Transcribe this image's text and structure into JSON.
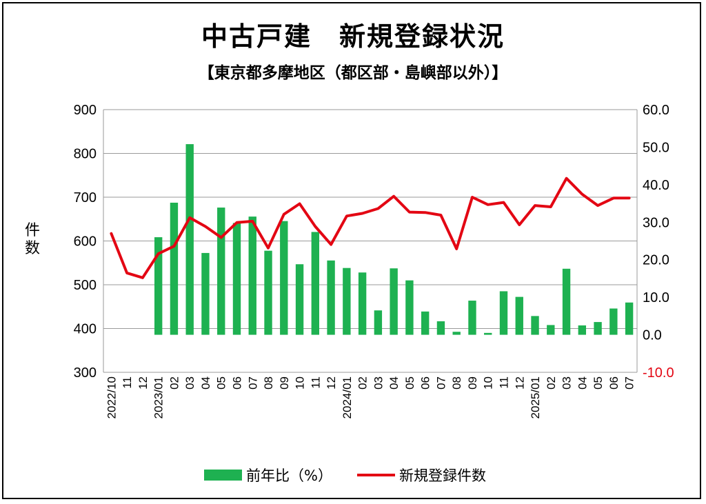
{
  "title": "中古戸建　新規登録状況",
  "subtitle": "【東京都多摩地区（都区部・島嶼部以外）】",
  "chart_data": {
    "type": "bar+line",
    "title": "中古戸建　新規登録状況",
    "subtitle": "【東京都多摩地区（都区部・島嶼部以外）】",
    "ylabel": "件数",
    "ylim": [
      300,
      900
    ],
    "yticks": [
      "900",
      "800",
      "700",
      "600",
      "500",
      "400",
      "300"
    ],
    "y2lim": [
      -10,
      60
    ],
    "y2ticks": [
      "60.0",
      "50.0",
      "40.0",
      "30.0",
      "20.0",
      "10.0",
      "0.0",
      "-10.0"
    ],
    "grid": true,
    "legend_position": "bottom",
    "categories": [
      "2022/10",
      "11",
      "12",
      "2023/01",
      "02",
      "03",
      "04",
      "05",
      "06",
      "07",
      "08",
      "09",
      "10",
      "11",
      "12",
      "2024/01",
      "02",
      "03",
      "04",
      "05",
      "06",
      "07",
      "08",
      "09",
      "10",
      "11",
      "12",
      "2025/01",
      "02",
      "03",
      "04",
      "05",
      "06",
      "07"
    ],
    "series": [
      {
        "name": "前年比(%)",
        "type": "bar",
        "axis": "right",
        "color": "#1eb151",
        "values": [
          null,
          null,
          null,
          26.0,
          35.2,
          50.8,
          21.8,
          33.9,
          29.8,
          31.5,
          22.4,
          30.3,
          18.8,
          27.4,
          19.8,
          17.8,
          16.6,
          6.5,
          17.7,
          14.5,
          6.2,
          3.6,
          0.8,
          9.1,
          0.5,
          11.6,
          10.1,
          5.0,
          2.6,
          17.6,
          2.5,
          3.4,
          7.0,
          8.6
        ]
      },
      {
        "name": "新規登録件数",
        "type": "line",
        "axis": "left",
        "color": "#e30613",
        "values": [
          617,
          527,
          516,
          571,
          588,
          653,
          633,
          608,
          642,
          645,
          584,
          661,
          685,
          633,
          592,
          657,
          663,
          674,
          702,
          666,
          665,
          659,
          582,
          700,
          683,
          688,
          637,
          681,
          678,
          743,
          707,
          681,
          698,
          698
        ]
      }
    ]
  },
  "legend": {
    "bar_label": "前年比（%）",
    "line_label": "新規登録件数"
  },
  "ylabel_text": "件数"
}
